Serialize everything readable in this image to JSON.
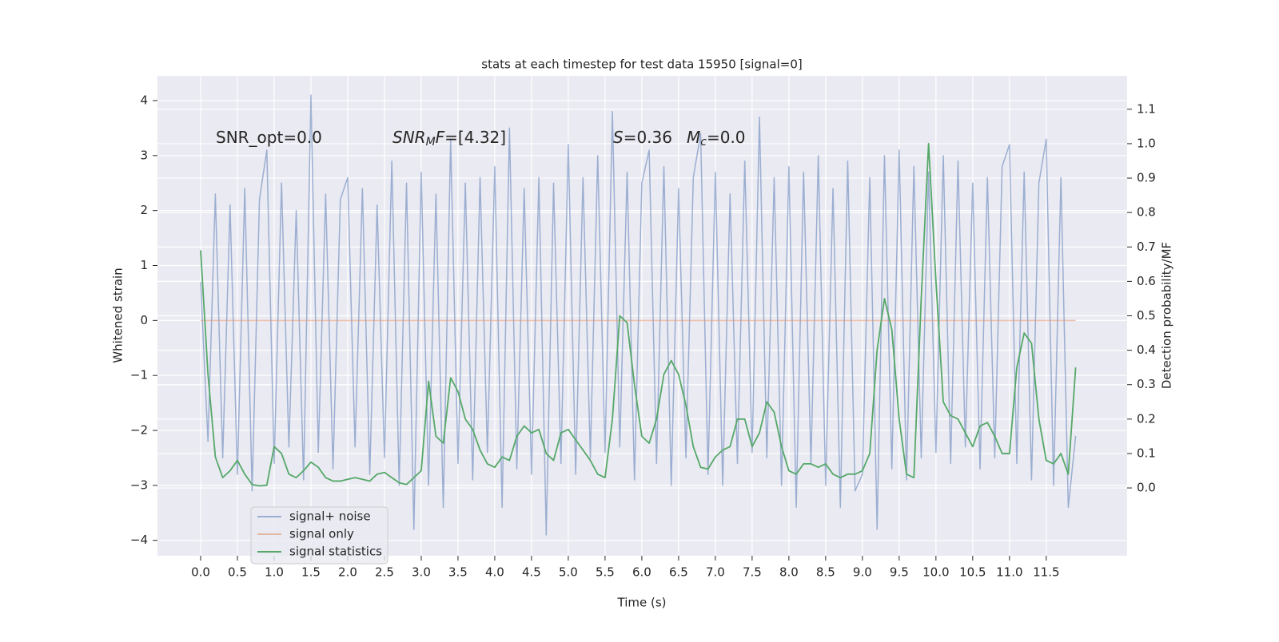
{
  "chart_data": {
    "type": "line",
    "title": "stats at each timestep for test data 15950 [signal=0]",
    "x_label": "Time (s)",
    "y_label": "Whitened strain",
    "y2_label": "Detection probability/MF",
    "annotations": [
      [
        {
          "text": "SNR_opt=0.0"
        }
      ],
      [
        {
          "text": "SNR",
          "italic": true
        },
        {
          "text": "M",
          "italic": true,
          "sub": true
        },
        {
          "text": "F",
          "italic": true
        },
        {
          "text": "=[4.32]"
        }
      ],
      [
        {
          "text": "S",
          "italic": true
        },
        {
          "text": "=0.36"
        }
      ],
      [
        {
          "text": "M",
          "italic": true
        },
        {
          "text": "c",
          "italic": true,
          "sub": true
        },
        {
          "text": "=0.0"
        }
      ]
    ],
    "x": [
      0.0,
      0.1,
      0.2,
      0.3,
      0.4,
      0.5,
      0.6,
      0.7,
      0.8,
      0.9,
      1.0,
      1.1,
      1.2,
      1.3,
      1.4,
      1.5,
      1.6,
      1.7,
      1.8,
      1.9,
      2.0,
      2.1,
      2.2,
      2.3,
      2.4,
      2.5,
      2.6,
      2.7,
      2.8,
      2.9,
      3.0,
      3.1,
      3.2,
      3.3,
      3.4,
      3.5,
      3.6,
      3.7,
      3.8,
      3.9,
      4.0,
      4.1,
      4.2,
      4.3,
      4.4,
      4.5,
      4.6,
      4.7,
      4.8,
      4.9,
      5.0,
      5.1,
      5.2,
      5.3,
      5.4,
      5.5,
      5.6,
      5.7,
      5.8,
      5.9,
      6.0,
      6.1,
      6.2,
      6.3,
      6.4,
      6.5,
      6.6,
      6.7,
      6.8,
      6.9,
      7.0,
      7.1,
      7.2,
      7.3,
      7.4,
      7.5,
      7.6,
      7.7,
      7.8,
      7.9,
      8.0,
      8.1,
      8.2,
      8.3,
      8.4,
      8.5,
      8.6,
      8.7,
      8.8,
      8.9,
      9.0,
      9.1,
      9.2,
      9.3,
      9.4,
      9.5,
      9.6,
      9.7,
      9.8,
      9.9,
      10.0,
      10.1,
      10.2,
      10.3,
      10.4,
      10.5,
      10.6,
      10.7,
      10.8,
      10.9,
      11.0,
      11.1,
      11.2,
      11.3,
      11.4,
      11.5,
      11.6,
      11.7,
      11.8,
      11.9
    ],
    "series": [
      {
        "name": "signal+ noise",
        "color": "rgba(76,114,176,0.5)",
        "values": [
          0.7,
          -2.2,
          2.3,
          -2.5,
          2.1,
          -2.8,
          2.4,
          -3.1,
          2.2,
          3.1,
          -2.6,
          2.5,
          -2.3,
          2.0,
          -2.9,
          4.1,
          -2.4,
          2.3,
          -2.7,
          2.2,
          2.6,
          -2.3,
          2.4,
          -2.8,
          2.1,
          -2.5,
          2.9,
          -3.0,
          2.5,
          -3.8,
          2.7,
          -3.0,
          2.3,
          -3.4,
          3.3,
          -2.6,
          2.5,
          -2.9,
          2.6,
          -2.4,
          2.8,
          -3.4,
          3.5,
          -2.7,
          2.4,
          -2.8,
          2.6,
          -3.9,
          2.5,
          -2.6,
          3.2,
          -2.8,
          2.6,
          -2.5,
          3.0,
          -2.4,
          3.8,
          -2.3,
          2.7,
          -2.9,
          2.5,
          3.1,
          -2.6,
          2.8,
          -3.0,
          2.4,
          -2.5,
          2.6,
          3.4,
          -2.8,
          2.7,
          -3.0,
          2.3,
          -2.6,
          2.9,
          -2.4,
          3.7,
          -2.5,
          2.6,
          -3.0,
          2.8,
          -3.4,
          2.7,
          -2.6,
          3.0,
          -3.0,
          2.4,
          -3.4,
          2.9,
          -3.1,
          -2.8,
          2.6,
          -3.8,
          3.0,
          -2.7,
          3.1,
          -2.9,
          2.8,
          -2.5,
          2.7,
          -2.4,
          3.0,
          -2.6,
          2.9,
          -2.3,
          2.5,
          -2.7,
          2.6,
          -2.5,
          2.8,
          3.2,
          -2.6,
          2.7,
          -2.9,
          2.5,
          3.3,
          -3.0,
          2.6,
          -3.4,
          -2.1
        ]
      },
      {
        "name": "signal only",
        "color": "rgba(221,132,82,0.5)",
        "values": [
          0,
          0,
          0,
          0,
          0,
          0,
          0,
          0,
          0,
          0,
          0,
          0,
          0,
          0,
          0,
          0,
          0,
          0,
          0,
          0,
          0,
          0,
          0,
          0,
          0,
          0,
          0,
          0,
          0,
          0,
          0,
          0,
          0,
          0,
          0,
          0,
          0,
          0,
          0,
          0,
          0,
          0,
          0,
          0,
          0,
          0,
          0,
          0,
          0,
          0,
          0,
          0,
          0,
          0,
          0,
          0,
          0,
          0,
          0,
          0,
          0,
          0,
          0,
          0,
          0,
          0,
          0,
          0,
          0,
          0,
          0,
          0,
          0,
          0,
          0,
          0,
          0,
          0,
          0,
          0,
          0,
          0,
          0,
          0,
          0,
          0,
          0,
          0,
          0,
          0,
          0,
          0,
          0,
          0,
          0,
          0,
          0,
          0,
          0,
          0,
          0,
          0,
          0,
          0,
          0,
          0,
          0,
          0,
          0,
          0,
          0,
          0,
          0,
          0,
          0,
          0,
          0,
          0,
          0,
          0
        ]
      },
      {
        "name": "signal statistics",
        "color": "#55a868",
        "axis": "y2",
        "values": [
          0.69,
          0.33,
          0.09,
          0.03,
          0.05,
          0.08,
          0.04,
          0.01,
          0.006,
          0.008,
          0.12,
          0.1,
          0.04,
          0.03,
          0.05,
          0.075,
          0.06,
          0.03,
          0.02,
          0.02,
          0.025,
          0.03,
          0.025,
          0.02,
          0.04,
          0.045,
          0.03,
          0.015,
          0.01,
          0.03,
          0.05,
          0.31,
          0.15,
          0.13,
          0.32,
          0.28,
          0.2,
          0.17,
          0.11,
          0.07,
          0.06,
          0.09,
          0.08,
          0.15,
          0.18,
          0.16,
          0.17,
          0.1,
          0.08,
          0.16,
          0.17,
          0.14,
          0.11,
          0.08,
          0.04,
          0.03,
          0.2,
          0.5,
          0.48,
          0.3,
          0.15,
          0.13,
          0.2,
          0.33,
          0.37,
          0.33,
          0.24,
          0.12,
          0.06,
          0.055,
          0.09,
          0.11,
          0.12,
          0.2,
          0.2,
          0.12,
          0.16,
          0.25,
          0.22,
          0.12,
          0.05,
          0.04,
          0.07,
          0.07,
          0.06,
          0.07,
          0.04,
          0.03,
          0.04,
          0.04,
          0.05,
          0.1,
          0.4,
          0.55,
          0.46,
          0.2,
          0.04,
          0.03,
          0.55,
          1.0,
          0.6,
          0.25,
          0.21,
          0.2,
          0.16,
          0.12,
          0.18,
          0.19,
          0.15,
          0.1,
          0.1,
          0.35,
          0.45,
          0.42,
          0.2,
          0.08,
          0.07,
          0.1,
          0.04,
          0.35
        ]
      }
    ],
    "xlim": [
      -0.587,
      12.6
    ],
    "xticks": [
      {
        "value": 0,
        "label": "0.0"
      },
      0.5,
      {
        "value": 1,
        "label": "1.0"
      },
      1.5,
      {
        "value": 2,
        "label": "2.0"
      },
      2.5,
      {
        "value": 3,
        "label": "3.0"
      },
      3.5,
      {
        "value": 4,
        "label": "4.0"
      },
      4.5,
      {
        "value": 5,
        "label": "5.0"
      },
      5.5,
      {
        "value": 6,
        "label": "6.0"
      },
      6.5,
      {
        "value": 7,
        "label": "7.0"
      },
      7.5,
      {
        "value": 8,
        "label": "8.0"
      },
      8.5,
      {
        "value": 9,
        "label": "9.0"
      },
      9.5,
      {
        "value": 10,
        "label": "10.0"
      },
      10.5,
      {
        "value": 11,
        "label": "11.0"
      },
      11.5
    ],
    "ylim": [
      -4.28,
      4.45
    ],
    "yticks": [
      {
        "value": -4,
        "label": "−4"
      },
      {
        "value": -3,
        "label": "−3"
      },
      {
        "value": -2,
        "label": "−2"
      },
      {
        "value": -1,
        "label": "−1"
      },
      0,
      1,
      2,
      3,
      4
    ],
    "y2lim": [
      -0.197,
      1.197
    ],
    "y2ticks": [
      {
        "value": 0,
        "label": "0.0"
      },
      0.1,
      0.2,
      0.3,
      0.4,
      0.5,
      0.6,
      0.7,
      0.8,
      0.9,
      {
        "value": 1,
        "label": "1.0"
      },
      1.1
    ],
    "grid": true,
    "legend": "lower left"
  }
}
